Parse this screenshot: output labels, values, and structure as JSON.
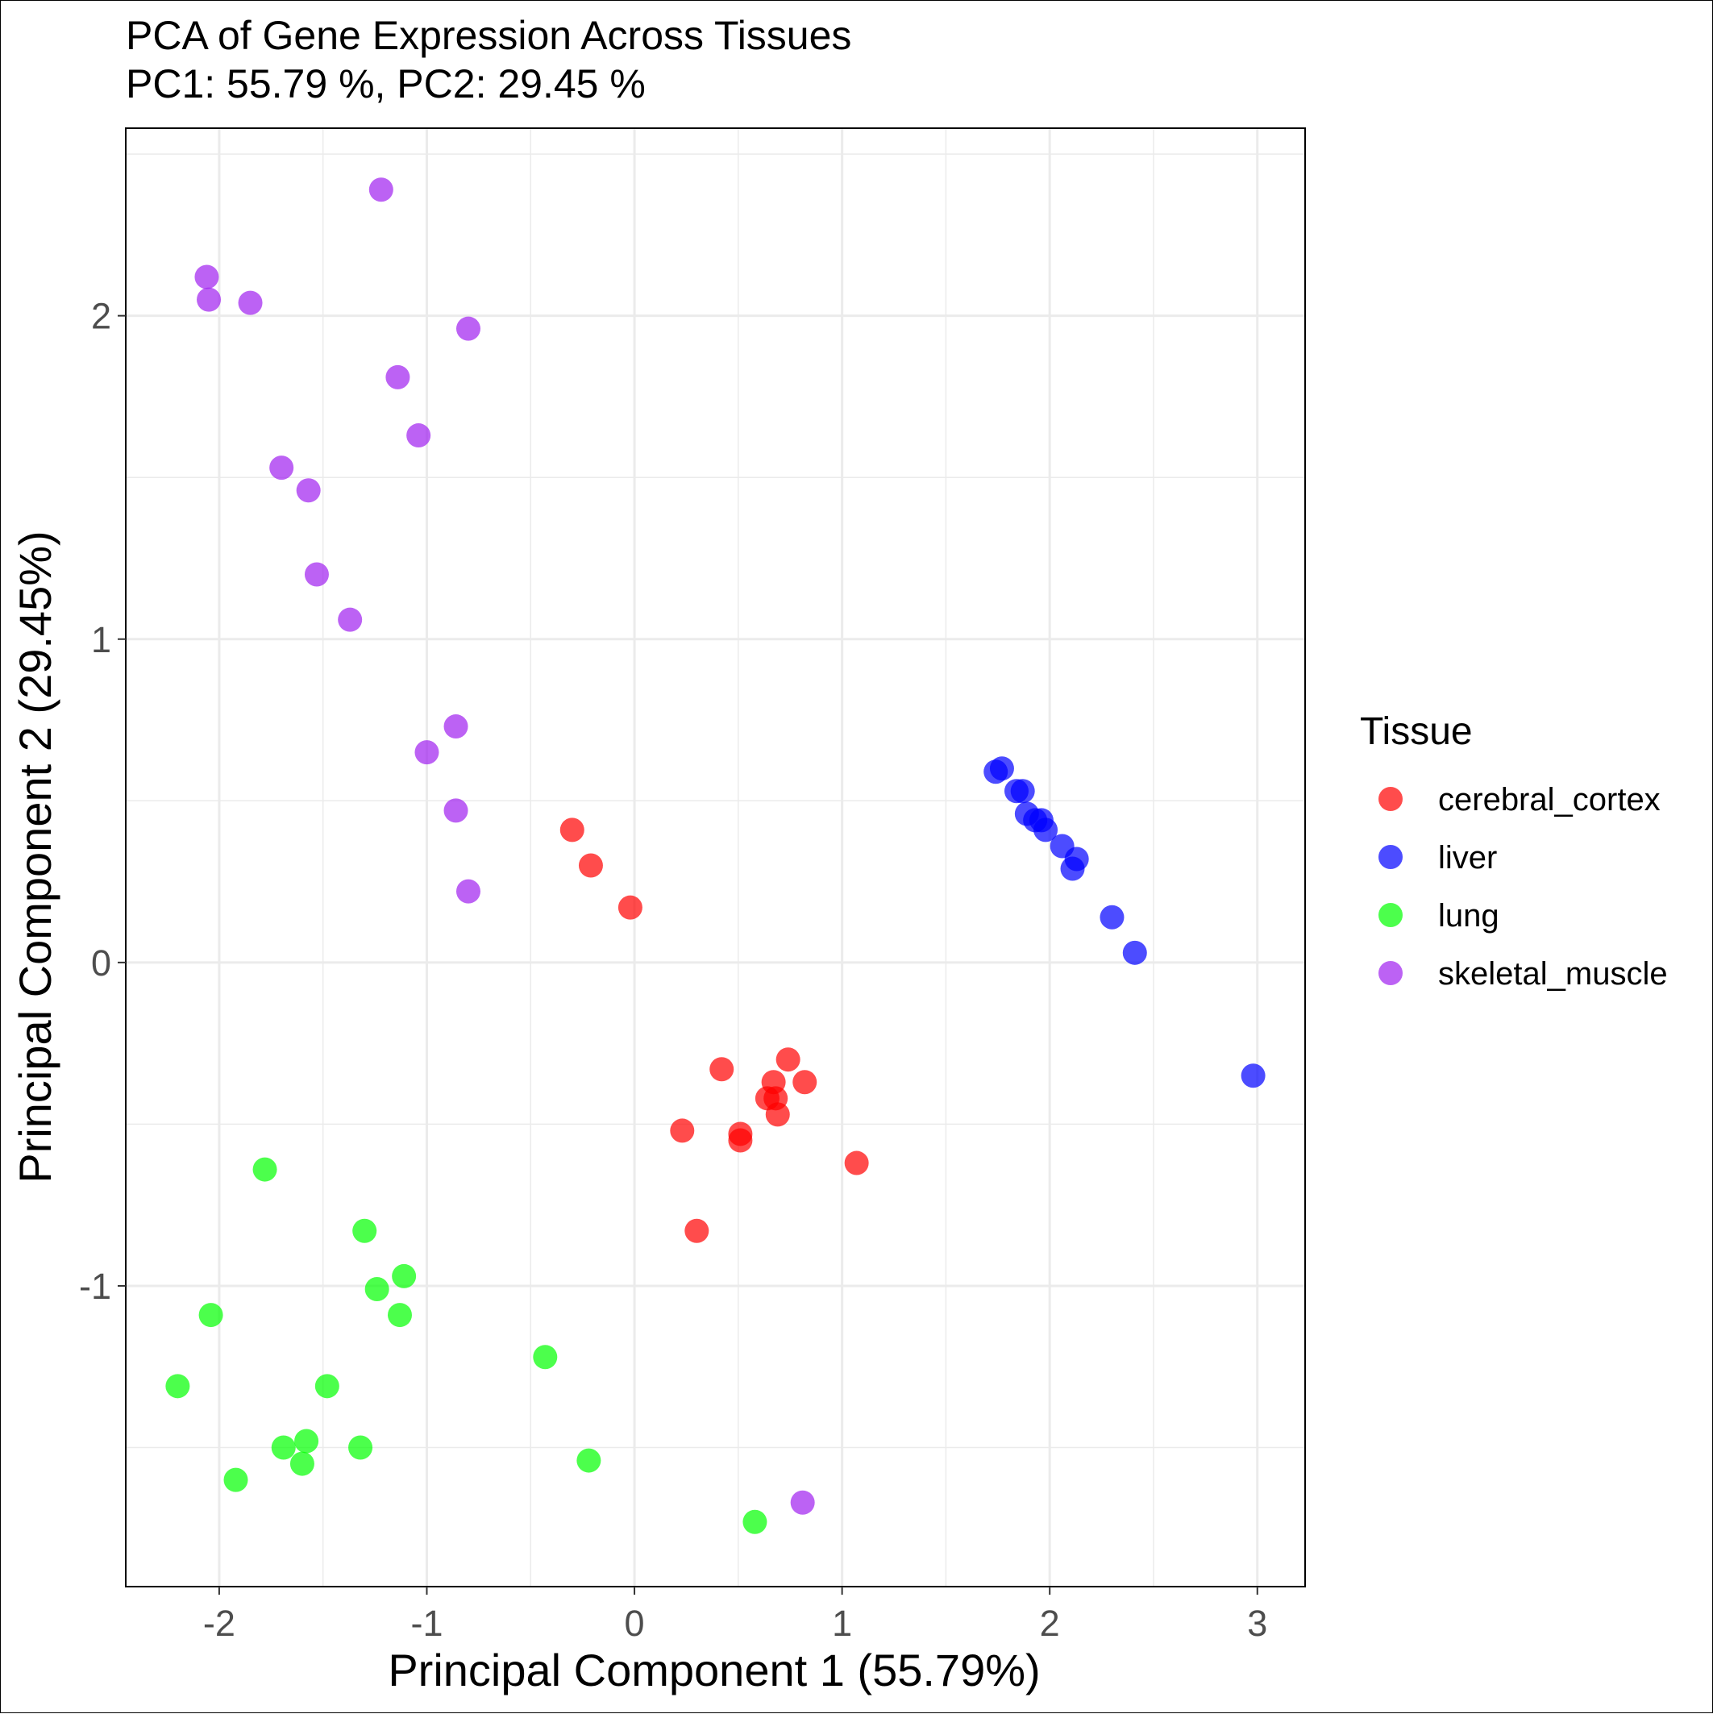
{
  "chart_data": {
    "type": "scatter",
    "title": "PCA of Gene Expression Across Tissues",
    "subtitle": "PC1: 55.79 %, PC2: 29.45 %",
    "xlabel": "Principal Component 1 (55.79%)",
    "ylabel": "Principal Component 2 (29.45%)",
    "xlim": [
      -2.45,
      3.23
    ],
    "ylim": [
      -1.93,
      2.58
    ],
    "x_ticks": [
      -2,
      -1,
      0,
      1,
      2,
      3
    ],
    "x_tick_labels": [
      "-2",
      "-1",
      "0",
      "1",
      "2",
      "3"
    ],
    "y_ticks": [
      -1,
      0,
      1,
      2
    ],
    "y_tick_labels": [
      "-1",
      "0",
      "1",
      "2"
    ],
    "grid": true,
    "legend": {
      "title": "Tissue",
      "position": "right"
    },
    "series": [
      {
        "name": "cerebral_cortex",
        "color": "#ff0000",
        "points": [
          [
            -0.3,
            0.41
          ],
          [
            -0.21,
            0.3
          ],
          [
            -0.02,
            0.17
          ],
          [
            0.74,
            -0.3
          ],
          [
            0.42,
            -0.33
          ],
          [
            0.67,
            -0.37
          ],
          [
            0.82,
            -0.37
          ],
          [
            0.64,
            -0.42
          ],
          [
            0.68,
            -0.42
          ],
          [
            0.69,
            -0.47
          ],
          [
            0.23,
            -0.52
          ],
          [
            0.51,
            -0.53
          ],
          [
            0.51,
            -0.55
          ],
          [
            1.07,
            -0.62
          ],
          [
            0.3,
            -0.83
          ]
        ]
      },
      {
        "name": "liver",
        "color": "#0000ff",
        "points": [
          [
            1.74,
            0.59
          ],
          [
            1.77,
            0.6
          ],
          [
            1.84,
            0.53
          ],
          [
            1.87,
            0.53
          ],
          [
            1.89,
            0.46
          ],
          [
            1.93,
            0.44
          ],
          [
            1.96,
            0.44
          ],
          [
            1.98,
            0.41
          ],
          [
            2.06,
            0.36
          ],
          [
            2.13,
            0.32
          ],
          [
            2.11,
            0.29
          ],
          [
            2.3,
            0.14
          ],
          [
            2.41,
            0.03
          ],
          [
            2.98,
            -0.35
          ]
        ]
      },
      {
        "name": "lung",
        "color": "#00ff00",
        "points": [
          [
            -1.78,
            -0.64
          ],
          [
            -1.3,
            -0.83
          ],
          [
            -1.11,
            -0.97
          ],
          [
            -1.24,
            -1.01
          ],
          [
            -1.13,
            -1.09
          ],
          [
            -2.04,
            -1.09
          ],
          [
            -0.43,
            -1.22
          ],
          [
            -2.2,
            -1.31
          ],
          [
            -1.48,
            -1.31
          ],
          [
            -1.58,
            -1.48
          ],
          [
            -1.69,
            -1.5
          ],
          [
            -1.32,
            -1.5
          ],
          [
            -1.6,
            -1.55
          ],
          [
            -0.22,
            -1.54
          ],
          [
            -1.92,
            -1.6
          ],
          [
            0.58,
            -1.73
          ]
        ]
      },
      {
        "name": "skeletal_muscle",
        "color": "#a020f0",
        "points": [
          [
            -1.22,
            2.39
          ],
          [
            -2.06,
            2.12
          ],
          [
            -2.05,
            2.05
          ],
          [
            -1.85,
            2.04
          ],
          [
            -0.8,
            1.96
          ],
          [
            -1.14,
            1.81
          ],
          [
            -1.04,
            1.63
          ],
          [
            -1.7,
            1.53
          ],
          [
            -1.57,
            1.46
          ],
          [
            -1.53,
            1.2
          ],
          [
            -1.37,
            1.06
          ],
          [
            -0.86,
            0.73
          ],
          [
            -1.0,
            0.65
          ],
          [
            -0.86,
            0.47
          ],
          [
            -0.8,
            0.22
          ],
          [
            0.81,
            -1.67
          ]
        ]
      }
    ]
  }
}
